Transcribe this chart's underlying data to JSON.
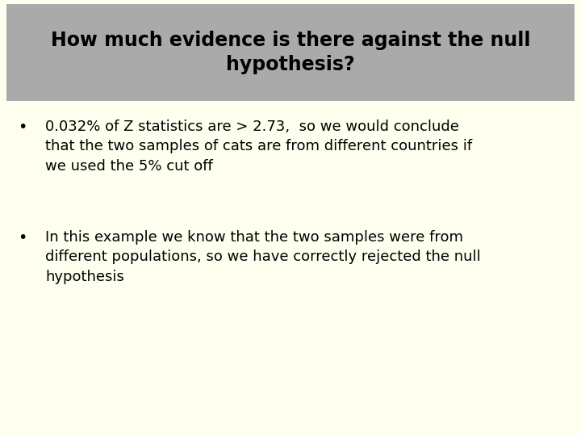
{
  "title_line1": "How much evidence is there against the null",
  "title_line2": "hypothesis?",
  "title_bg_color": "#aaaaaa",
  "title_text_color": "#000000",
  "body_bg_color": "#fffff0",
  "bullet1_line1": "0.032% of Z statistics are > 2.73,  so we would conclude",
  "bullet1_line2": "that the two samples of cats are from different countries if",
  "bullet1_line3": "we used the 5% cut off",
  "bullet2_line1": "In this example we know that the two samples were from",
  "bullet2_line2": "different populations, so we have correctly rejected the null",
  "bullet2_line3": "hypothesis",
  "font_size_title": 17,
  "font_size_body": 13
}
